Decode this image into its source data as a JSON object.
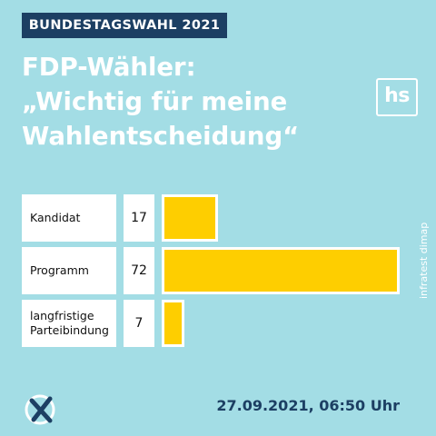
{
  "header": {
    "tag": "BUNDESTAGSWAHL 2021",
    "headline_lines": [
      "FDP-Wähler:",
      "„Wichtig für meine",
      "Wahlentscheidung“"
    ],
    "logo_text": "hs"
  },
  "chart_data": {
    "type": "bar",
    "orientation": "horizontal",
    "categories": [
      "Kandidat",
      "Programm",
      "langfristige Parteibindung"
    ],
    "values": [
      17,
      72,
      7
    ],
    "value_labels": [
      "17",
      "72",
      "7"
    ],
    "xlim": [
      0,
      72
    ],
    "bar_color": "#fece00",
    "grid": false
  },
  "footer": {
    "source": "infratest dimap",
    "timestamp": "27.09.2021, 06:50 Uhr"
  },
  "colors": {
    "background": "#a3dde5",
    "navy": "#1c3f63",
    "bar": "#fece00"
  }
}
